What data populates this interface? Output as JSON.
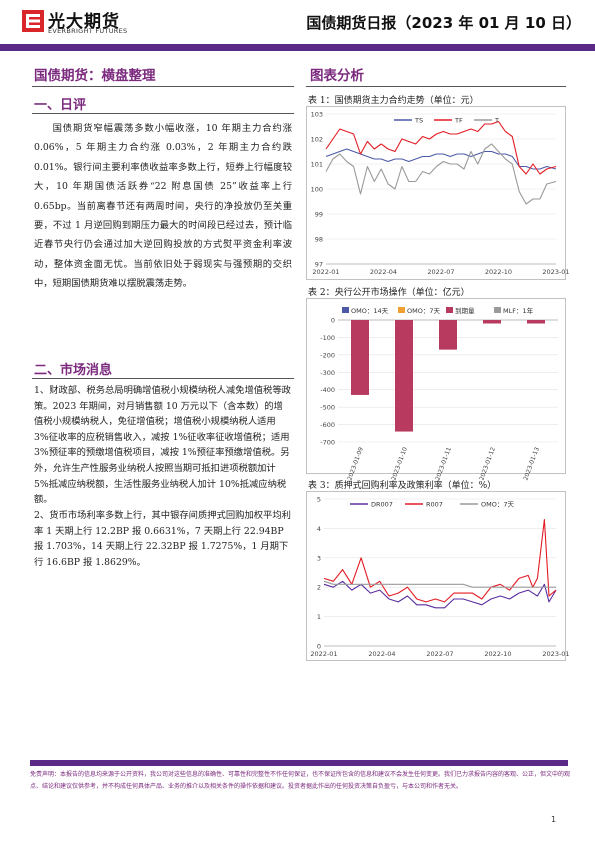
{
  "header": {
    "brand_cn": "光大期货",
    "brand_en": "EVERBRIGHT FUTURES",
    "report_title": "国债期货日报（2023 年 01 月 10 日）",
    "accent": "#5b2a86",
    "logo_red": "#d9262a"
  },
  "left": {
    "main_title": "国债期货：横盘整理",
    "sec1": "一、日评",
    "sec1_paragraphs": [
      "国债期货窄幅震荡多数小幅收涨，10 年期主力合约涨 0.06%，5 年期主力合约涨 0.03%，2 年期主力合约跌 0.01%。银行间主要利率债收益率多数上行，短券上行幅度较大，10 年期国债活跃券“22 附息国债 25”收益率上行 0.65bp。当前离春节还有两周时间，央行的净投放仍至关重要，不过 1 月逆回购到期压力最大的时间段已经过去，预计临近春节央行仍会通过加大逆回购投放的方式熨平资金利率波动，整体资金面无忧。当前依旧处于弱现实与强预期的交织中，短期国债期货难以摆脱震荡走势。"
    ],
    "sec2": "二、市场消息",
    "sec2_paragraphs": [
      "1、财政部、税务总局明确增值税小规模纳税人减免增值税等政策。2023 年期间，对月销售额 10 万元以下（含本数）的增值税小规模纳税人，免征增值税；增值税小规模纳税人适用 3%征收率的应税销售收入，减按 1%征收率征收增值税；适用 3%预征率的预缴增值税项目，减按 1%预征率预缴增值税。另外，允许生产性服务业纳税人按照当期可抵扣进项税额加计 5%抵减应纳税额，生活性服务业纳税人加计 10%抵减应纳税额。",
      "2、货币市场利率多数上行，其中银存间质押式回购加权平均利率 1 天期上行 12.2BP 报 0.6631%，7 天期上行 22.94BP 报 1.703%，14 天期上行 22.32BP 报 1.7275%，1 月期下行 16.6BP 报 1.8629%。"
    ]
  },
  "right": {
    "section_title": "图表分析",
    "chart1_caption": "表 1：国债期货主力合约走势（单位：元）",
    "chart2_caption": "表 2：央行公开市场操作（单位：亿元）",
    "chart3_caption": "表 3：质押式回购利率及政策利率（单位：%）"
  },
  "chart_data": [
    {
      "type": "line",
      "title": "",
      "x_tick_labels": [
        "2022-01",
        "2022-04",
        "2022-07",
        "2022-10",
        "2023-01"
      ],
      "ylim": [
        97,
        103
      ],
      "y_ticks": [
        97,
        98,
        99,
        100,
        101,
        102,
        103
      ],
      "legend": [
        "TS",
        "TF",
        "T"
      ],
      "legend_placement": "top-center",
      "colors": {
        "TS": "#4c59a6",
        "TF": "#e31b23",
        "T": "#9a9a9a"
      },
      "x_fraction": [
        0,
        0.03,
        0.06,
        0.09,
        0.12,
        0.15,
        0.18,
        0.21,
        0.24,
        0.27,
        0.3,
        0.33,
        0.36,
        0.39,
        0.42,
        0.45,
        0.48,
        0.51,
        0.54,
        0.57,
        0.6,
        0.63,
        0.66,
        0.69,
        0.72,
        0.75,
        0.78,
        0.81,
        0.84,
        0.87,
        0.9,
        0.93,
        0.96,
        1.0
      ],
      "series": [
        {
          "name": "TS",
          "values": [
            101.3,
            101.4,
            101.5,
            101.6,
            101.5,
            101.4,
            101.3,
            101.2,
            101.2,
            101.1,
            101.2,
            101.2,
            101.1,
            101.2,
            101.3,
            101.3,
            101.4,
            101.4,
            101.3,
            101.4,
            101.4,
            101.3,
            101.4,
            101.5,
            101.5,
            101.4,
            101.4,
            101.3,
            100.9,
            100.9,
            100.8,
            100.8,
            100.9,
            100.8
          ]
        },
        {
          "name": "TF",
          "values": [
            101.6,
            102.0,
            102.4,
            102.3,
            102.2,
            101.4,
            101.9,
            101.6,
            101.8,
            101.6,
            101.5,
            102.0,
            101.9,
            101.8,
            102.1,
            102.0,
            102.2,
            102.3,
            102.2,
            102.2,
            102.3,
            102.4,
            102.3,
            102.6,
            102.6,
            102.7,
            102.3,
            102.1,
            100.9,
            100.6,
            101.0,
            100.6,
            100.8,
            100.9
          ]
        },
        {
          "name": "T",
          "values": [
            100.7,
            101.2,
            101.4,
            101.1,
            100.9,
            99.8,
            100.9,
            100.3,
            100.8,
            100.2,
            100.0,
            100.9,
            100.3,
            100.3,
            100.7,
            100.6,
            100.9,
            101.1,
            101.0,
            101.0,
            100.8,
            101.5,
            101.0,
            101.6,
            101.8,
            101.5,
            101.2,
            101.0,
            99.9,
            99.4,
            99.6,
            99.6,
            100.2,
            100.3
          ]
        }
      ]
    },
    {
      "type": "bar",
      "title": "",
      "categories": [
        "2023-01-09",
        "2023-01-10",
        "2023-01-11",
        "2023-01-12",
        "2023-01-13"
      ],
      "ylim": [
        -700,
        0
      ],
      "y_ticks": [
        0,
        -100,
        -200,
        -300,
        -400,
        -500,
        -600,
        -700
      ],
      "legend": [
        "OMO：14天",
        "OMO：7天",
        "到期量",
        "MLF：1年"
      ],
      "legend_placement": "top",
      "colors": {
        "OMO：14天": "#4c59a6",
        "OMO：7天": "#f0a030",
        "到期量": "#b83a5e",
        "MLF：1年": "#9a9a9a"
      },
      "series": [
        {
          "name": "到期量",
          "values": [
            -430,
            -640,
            -170,
            -20,
            -20
          ]
        }
      ]
    },
    {
      "type": "line",
      "title": "",
      "x_tick_labels": [
        "2022-01",
        "2022-04",
        "2022-07",
        "2022-10",
        "2023-01"
      ],
      "ylim": [
        0,
        5
      ],
      "y_ticks": [
        0,
        1,
        2,
        3,
        4,
        5
      ],
      "legend": [
        "DR007",
        "R007",
        "OMO：7天"
      ],
      "legend_placement": "top-center",
      "colors": {
        "DR007": "#5a2ea0",
        "R007": "#e31b23",
        "OMO：7天": "#9a9a9a"
      },
      "x_fraction": [
        0,
        0.04,
        0.08,
        0.12,
        0.16,
        0.2,
        0.24,
        0.28,
        0.32,
        0.36,
        0.4,
        0.44,
        0.48,
        0.52,
        0.56,
        0.6,
        0.64,
        0.68,
        0.72,
        0.76,
        0.8,
        0.84,
        0.88,
        0.9,
        0.92,
        0.95,
        0.97,
        1.0
      ],
      "series": [
        {
          "name": "DR007",
          "values": [
            2.1,
            2.0,
            2.2,
            1.9,
            2.1,
            1.8,
            1.9,
            1.6,
            1.5,
            1.7,
            1.4,
            1.4,
            1.3,
            1.3,
            1.6,
            1.6,
            1.5,
            1.4,
            1.6,
            1.7,
            1.6,
            1.8,
            1.9,
            1.8,
            1.7,
            2.1,
            1.5,
            1.9
          ]
        },
        {
          "name": "R007",
          "values": [
            2.3,
            2.2,
            2.6,
            2.1,
            3.0,
            2.0,
            2.2,
            1.7,
            1.8,
            2.0,
            1.6,
            1.5,
            1.6,
            1.5,
            1.8,
            1.8,
            1.8,
            1.6,
            2.0,
            2.1,
            1.9,
            2.3,
            2.4,
            2.0,
            2.3,
            4.3,
            1.7,
            1.9
          ]
        },
        {
          "name": "OMO：7天",
          "values": [
            2.2,
            2.1,
            2.1,
            2.1,
            2.1,
            2.1,
            2.1,
            2.1,
            2.1,
            2.1,
            2.1,
            2.1,
            2.1,
            2.1,
            2.1,
            2.1,
            2.0,
            2.0,
            2.0,
            2.0,
            2.0,
            2.0,
            2.0,
            2.0,
            2.0,
            2.0,
            2.0,
            2.0
          ]
        }
      ]
    }
  ],
  "footer": {
    "disclaimer": "免责声明：本报告的信息均来源于公开资料，我公司对这些信息的准确性、可靠性和完整性不作任何保证，也不保证所包含的信息和建议不会发生任何变更。我们已力求报告内容的客观、公正，但文中的观点、结论和建议仅供参考，并不构成任何具体产品、业务的推介以及相关条件的操作依据和建议。投资者据此作出的任何投资决策自负盈亏，与本公司和作者无关。",
    "page_number": "1"
  }
}
